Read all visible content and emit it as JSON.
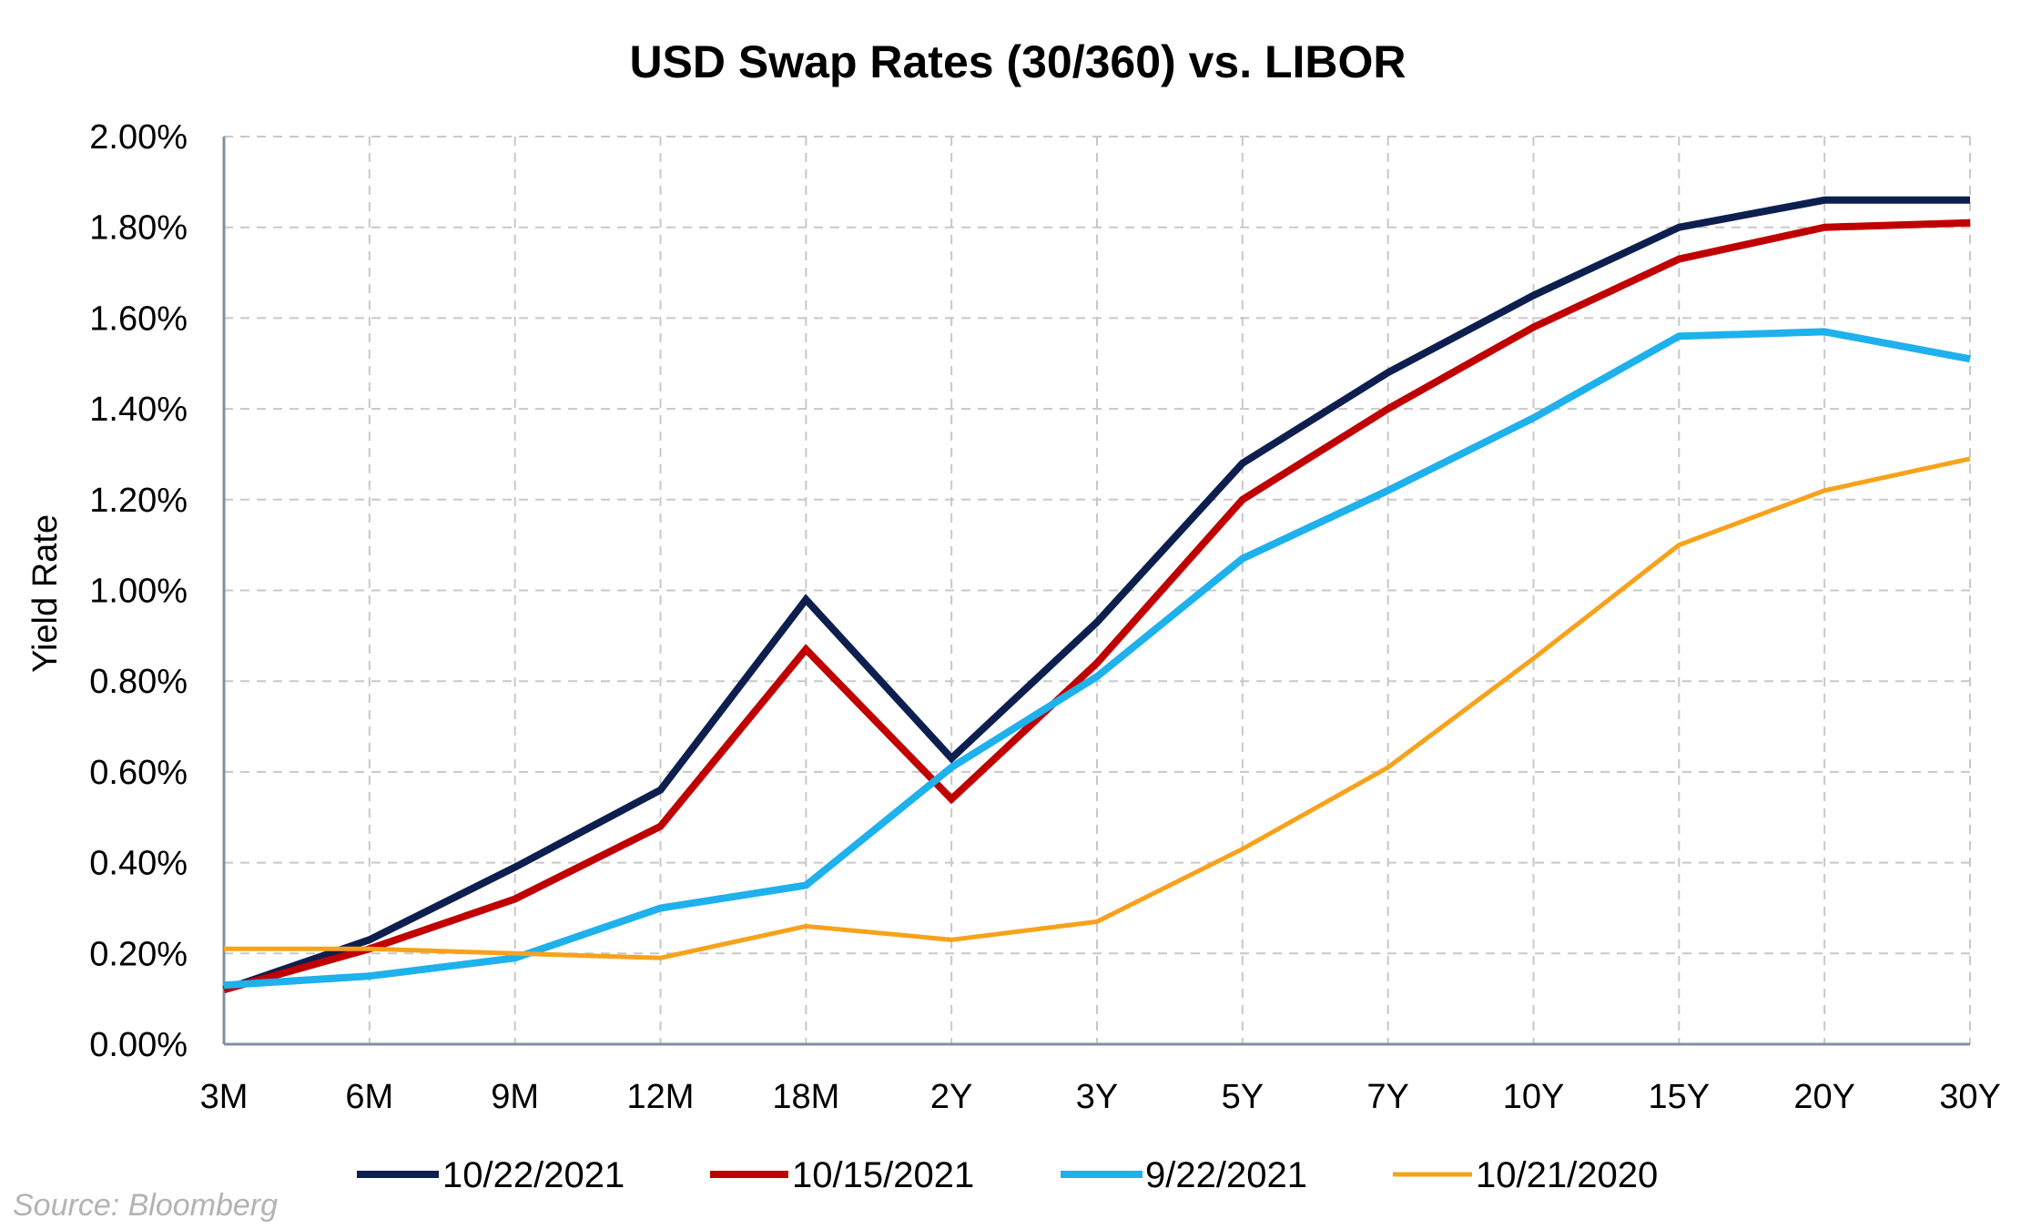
{
  "chart_data": {
    "type": "line",
    "title": "USD Swap Rates (30/360) vs. LIBOR",
    "xlabel": "",
    "ylabel": "Yield Rate",
    "categories": [
      "3M",
      "6M",
      "9M",
      "12M",
      "18M",
      "2Y",
      "3Y",
      "5Y",
      "7Y",
      "10Y",
      "15Y",
      "20Y",
      "30Y"
    ],
    "ylim": [
      0,
      2.0
    ],
    "yticks": [
      0,
      0.2,
      0.4,
      0.6,
      0.8,
      1.0,
      1.2,
      1.4,
      1.6,
      1.8,
      2.0
    ],
    "ytick_labels": [
      "0.00%",
      "0.20%",
      "0.40%",
      "0.60%",
      "0.80%",
      "1.00%",
      "1.20%",
      "1.40%",
      "1.60%",
      "1.80%",
      "2.00%"
    ],
    "grid": true,
    "legend_position": "bottom",
    "series": [
      {
        "name": "10/22/2021",
        "color": "#0d1f4f",
        "values": [
          0.12,
          0.23,
          0.39,
          0.56,
          0.98,
          0.63,
          0.93,
          1.28,
          1.48,
          1.65,
          1.8,
          1.86,
          1.86
        ]
      },
      {
        "name": "10/15/2021",
        "color": "#c00000",
        "values": [
          0.12,
          0.21,
          0.32,
          0.48,
          0.87,
          0.54,
          0.84,
          1.2,
          1.4,
          1.58,
          1.73,
          1.8,
          1.81
        ]
      },
      {
        "name": "9/22/2021",
        "color": "#1eb1ec",
        "values": [
          0.13,
          0.15,
          0.19,
          0.3,
          0.35,
          0.61,
          0.81,
          1.07,
          1.22,
          1.38,
          1.56,
          1.57,
          1.51
        ]
      },
      {
        "name": "10/21/2020",
        "color": "#f7a21b",
        "values": [
          0.21,
          0.21,
          0.2,
          0.19,
          0.26,
          0.23,
          0.27,
          0.43,
          0.61,
          0.85,
          1.1,
          1.22,
          1.29
        ]
      }
    ],
    "source": "Source: Bloomberg"
  }
}
